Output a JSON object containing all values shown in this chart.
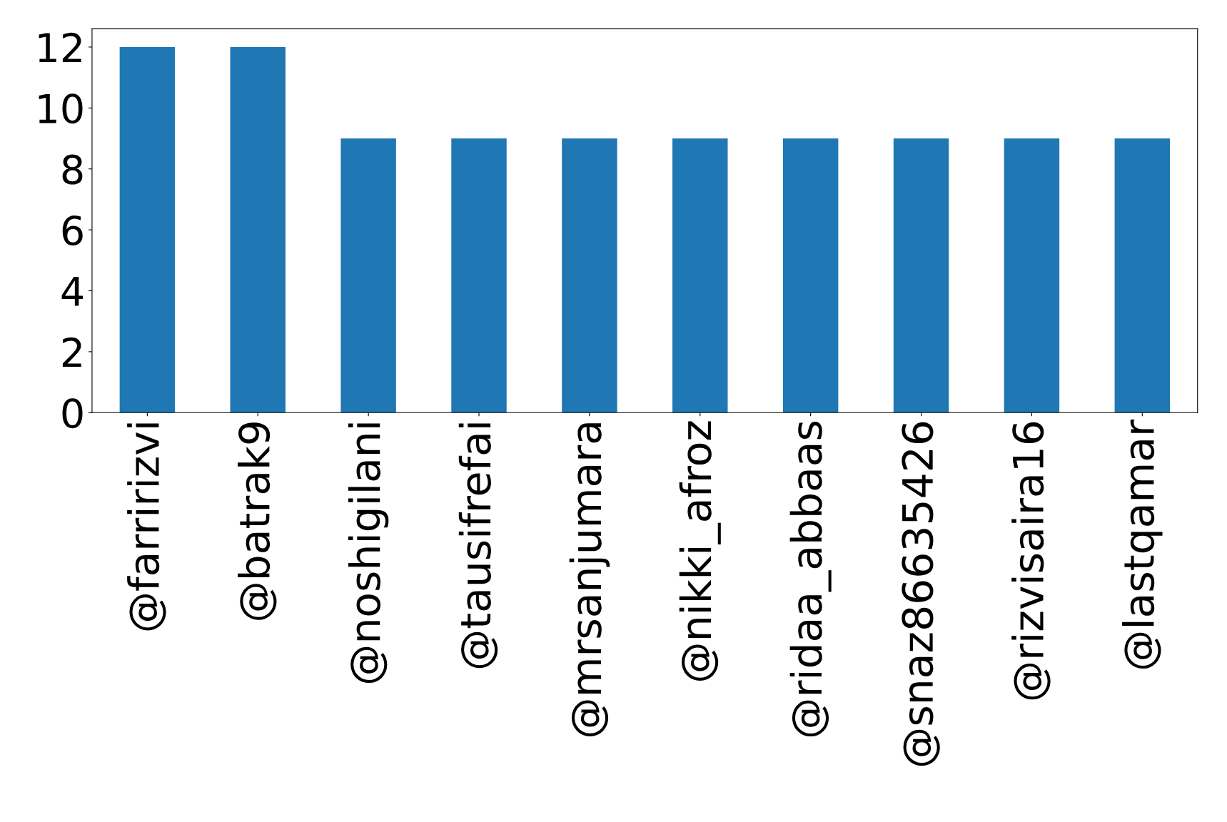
{
  "chart_data": {
    "type": "bar",
    "categories": [
      "@farririzvi",
      "@batrak9",
      "@noshigilani",
      "@tausifrefai",
      "@mrsanjumara",
      "@nikki_afroz",
      "@ridaa_abbaas",
      "@snaz86635426",
      "@rizvisaira16",
      "@lastqamar"
    ],
    "values": [
      12,
      12,
      9,
      9,
      9,
      9,
      9,
      9,
      9,
      9
    ],
    "color": "#1f77b4",
    "ylim": [
      0,
      12.6
    ],
    "yticks": [
      0,
      2,
      4,
      6,
      8,
      10,
      12
    ],
    "grid": false
  }
}
